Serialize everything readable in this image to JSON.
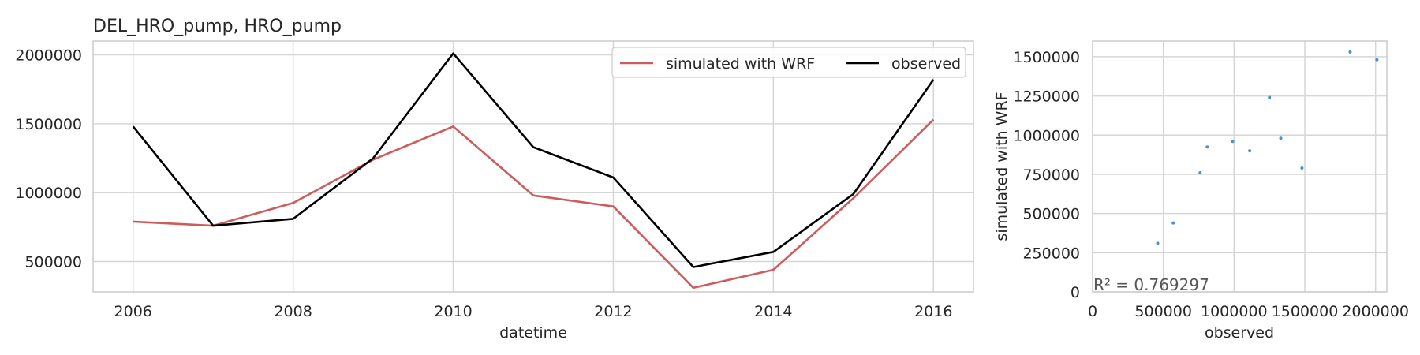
{
  "chart_data": [
    {
      "type": "line",
      "title": "DEL_HRO_pump, HRO_pump",
      "xlabel": "datetime",
      "ylabel": "",
      "x": [
        2006,
        2007,
        2008,
        2009,
        2010,
        2011,
        2012,
        2013,
        2014,
        2015,
        2016
      ],
      "xlim": [
        2005.5,
        2016.5
      ],
      "ylim": [
        280000,
        2100000
      ],
      "xticks": [
        2006,
        2008,
        2010,
        2012,
        2014,
        2016
      ],
      "xtick_labels": [
        "2006",
        "2008",
        "2010",
        "2012",
        "2014",
        "2016"
      ],
      "yticks": [
        500000,
        1000000,
        1500000,
        2000000
      ],
      "ytick_labels": [
        "500000",
        "1000000",
        "1500000",
        "2000000"
      ],
      "grid": true,
      "legend": {
        "placement": "top-right",
        "ncol": 2
      },
      "series": [
        {
          "name": "simulated with WRF",
          "color": "#cd5c5c",
          "values": [
            790000,
            760000,
            925000,
            1240000,
            1480000,
            980000,
            900000,
            310000,
            440000,
            960000,
            1530000
          ]
        },
        {
          "name": "observed",
          "color": "#000000",
          "values": [
            1480000,
            760000,
            810000,
            1250000,
            2010000,
            1330000,
            1110000,
            460000,
            570000,
            990000,
            1820000
          ]
        }
      ]
    },
    {
      "type": "scatter",
      "title": "",
      "xlabel": "observed",
      "ylabel": "simulated with WRF",
      "xlim": [
        0,
        2080000
      ],
      "ylim": [
        0,
        1600000
      ],
      "xticks": [
        0,
        500000,
        1000000,
        1500000,
        2000000
      ],
      "xtick_labels": [
        "0",
        "500000",
        "1000000",
        "1500000",
        "2000000"
      ],
      "yticks": [
        0,
        250000,
        500000,
        750000,
        1000000,
        1250000,
        1500000
      ],
      "ytick_labels": [
        "0",
        "250000",
        "500000",
        "750000",
        "1000000",
        "1250000",
        "1500000"
      ],
      "grid": true,
      "point_color": "#4c8fd6",
      "annotation": "R² = 0.769297",
      "points": [
        {
          "x": 460000,
          "y": 310000
        },
        {
          "x": 570000,
          "y": 440000
        },
        {
          "x": 760000,
          "y": 760000
        },
        {
          "x": 810000,
          "y": 925000
        },
        {
          "x": 990000,
          "y": 960000
        },
        {
          "x": 1110000,
          "y": 900000
        },
        {
          "x": 1250000,
          "y": 1240000
        },
        {
          "x": 1330000,
          "y": 980000
        },
        {
          "x": 1480000,
          "y": 790000
        },
        {
          "x": 1820000,
          "y": 1530000
        },
        {
          "x": 2010000,
          "y": 1480000
        }
      ]
    }
  ]
}
